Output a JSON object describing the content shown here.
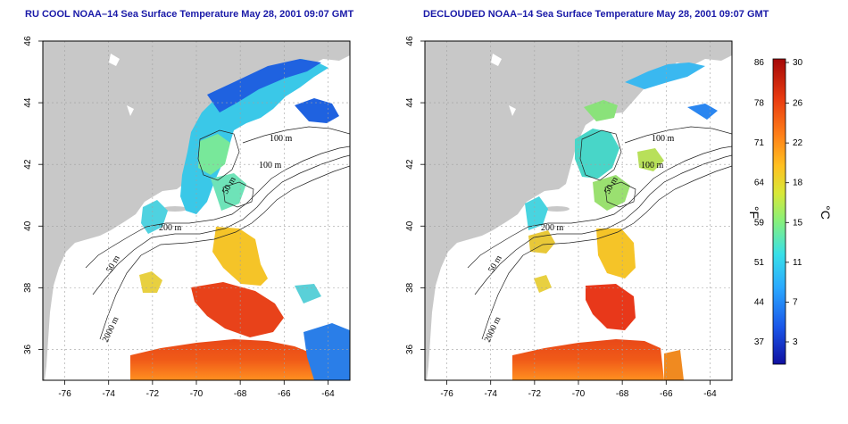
{
  "panels": [
    {
      "id": "raw",
      "title": "RU COOL NOAA–14 Sea Surface Temperature May 28, 2001 09:07 GMT"
    },
    {
      "id": "decloud",
      "title": "DECLOUDED NOAA–14 Sea Surface Temperature May 28, 2001 09:07 GMT"
    }
  ],
  "axes": {
    "lon_ticks": [
      "-76",
      "-74",
      "-72",
      "-70",
      "-68",
      "-66",
      "-64"
    ],
    "lat_ticks": [
      "46",
      "44",
      "42",
      "40",
      "38",
      "36"
    ],
    "lon_range": [
      -77,
      -63
    ],
    "lat_range": [
      35,
      46
    ]
  },
  "contour_labels": [
    "100 m",
    "100 m",
    "200 m",
    "50 m",
    "50 m",
    "2000 m"
  ],
  "colorbar": {
    "f_label": "°F",
    "c_label": "°C",
    "f_ticks": [
      "86",
      "78",
      "71",
      "64",
      "59",
      "51",
      "44",
      "37"
    ],
    "c_ticks": [
      "30",
      "26",
      "22",
      "18",
      "15",
      "11",
      "7",
      "3"
    ]
  },
  "colors": {
    "land": "#c8c8c8",
    "title": "#1a1aa8",
    "grid": "#a0a0a0",
    "scale": [
      "#1010a0",
      "#1a55e8",
      "#2aa8ff",
      "#38e0e8",
      "#88f07a",
      "#d8e838",
      "#ffc020",
      "#ff8018",
      "#e83a10",
      "#a40808"
    ]
  }
}
